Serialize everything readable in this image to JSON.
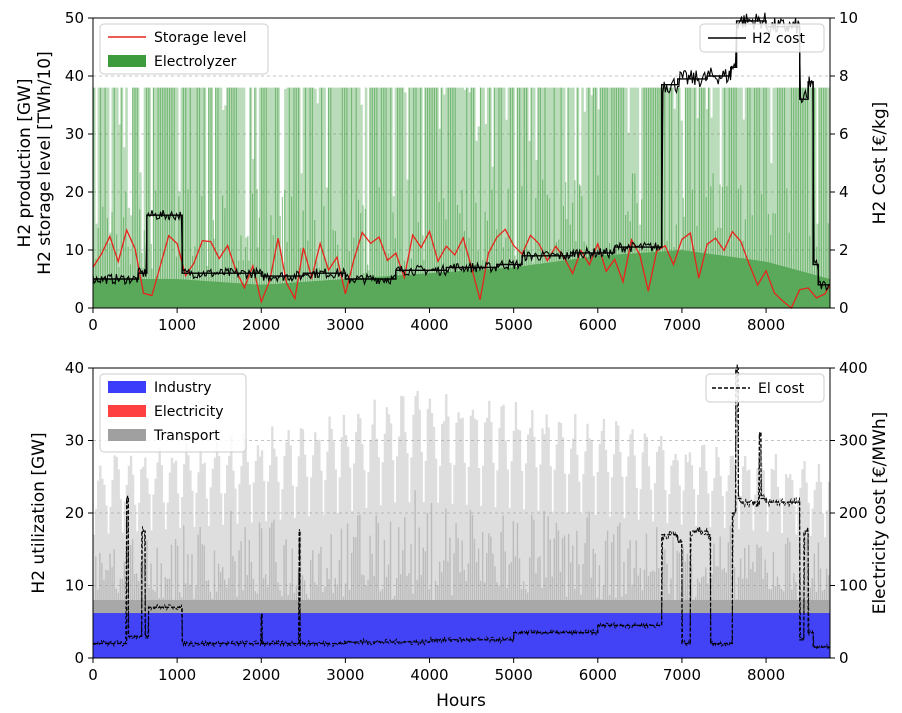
{
  "chart_data": [
    {
      "type": "area",
      "xlabel": "",
      "ylabel_lines": [
        "H2 production [GW]",
        "H2 storage level [TWh/10]"
      ],
      "ylabel_right": "H2 Cost [€/kg]",
      "xlim": [
        0,
        8760
      ],
      "ylim": [
        0,
        50
      ],
      "ylim_right": [
        0,
        10
      ],
      "xticks": [
        "0",
        "1000",
        "2000",
        "3000",
        "4000",
        "5000",
        "6000",
        "7000",
        "8000"
      ],
      "yticks": [
        "0",
        "10",
        "20",
        "30",
        "40",
        "50"
      ],
      "yticks_right": [
        "0",
        "2",
        "4",
        "6",
        "8",
        "10"
      ],
      "grid": "horizontal dashed",
      "legends": [
        {
          "placement": "top-left",
          "entries": [
            {
              "label": "Storage level",
              "kind": "line",
              "color": "#e8231b"
            },
            {
              "label": "Electrolyzer",
              "kind": "patch",
              "color": "#3d9a3d"
            }
          ]
        },
        {
          "placement": "top-right",
          "entries": [
            {
              "label": "H2 cost",
              "kind": "line",
              "color": "#000000"
            }
          ]
        }
      ],
      "series": [
        {
          "name": "Electrolyzer",
          "axis": "left",
          "color": "#3d9a3d",
          "note_level": "baseline-and-capacity",
          "x": [
            0,
            1000,
            2000,
            3000,
            4000,
            5000,
            6000,
            7000,
            8000,
            8760
          ],
          "capacity": [
            38,
            38,
            38,
            38,
            38,
            38,
            38,
            38,
            38,
            38
          ],
          "base": [
            5,
            5,
            4,
            5,
            6,
            7,
            9,
            10,
            8,
            5
          ]
        },
        {
          "name": "Storage level",
          "axis": "left",
          "color": "#e8231b",
          "x": [
            0,
            100,
            200,
            300,
            400,
            500,
            600,
            700,
            800,
            900,
            1000,
            1100,
            1200,
            1300,
            1400,
            1500,
            1600,
            1700,
            1800,
            1900,
            2000,
            2100,
            2200,
            2300,
            2400,
            2500,
            2600,
            2700,
            2800,
            2900,
            3000,
            3100,
            3200,
            3300,
            3400,
            3500,
            3600,
            3700,
            3800,
            3900,
            4000,
            4100,
            4200,
            4300,
            4400,
            4500,
            4600,
            4700,
            4800,
            4900,
            5000,
            5100,
            5200,
            5300,
            5400,
            5500,
            5600,
            5700,
            5800,
            5900,
            6000,
            6100,
            6200,
            6300,
            6400,
            6500,
            6600,
            6700,
            6800,
            6900,
            7000,
            7100,
            7200,
            7300,
            7400,
            7500,
            7600,
            7700,
            7800,
            7900,
            8000,
            8100,
            8200,
            8300,
            8400,
            8500,
            8600,
            8700,
            8760
          ],
          "values": [
            7,
            9,
            12,
            8,
            13,
            10,
            3,
            2,
            7,
            12,
            11,
            5,
            8,
            11,
            12,
            9,
            11,
            6,
            3,
            7,
            1,
            5,
            12,
            4,
            2,
            10,
            5,
            11,
            6,
            9,
            3,
            8,
            13,
            11,
            12,
            8,
            10,
            5,
            12,
            10,
            13,
            8,
            11,
            9,
            12,
            7,
            2,
            9,
            12,
            13,
            11,
            9,
            12,
            11,
            8,
            11,
            9,
            6,
            10,
            8,
            11,
            6,
            8,
            5,
            12,
            9,
            3,
            10,
            11,
            8,
            12,
            13,
            5,
            11,
            12,
            10,
            13,
            11,
            7,
            4,
            6,
            2,
            1,
            0,
            3,
            4,
            2,
            3,
            4
          ]
        },
        {
          "name": "H2 cost",
          "axis": "right",
          "color": "#000000",
          "step": true,
          "x": [
            0,
            540,
            640,
            1060,
            2000,
            2500,
            3000,
            3600,
            4200,
            4800,
            5100,
            5700,
            6200,
            6760,
            6950,
            7300,
            7580,
            7650,
            8000,
            8400,
            8500,
            8560,
            8620,
            8760
          ],
          "values": [
            1.0,
            1.2,
            3.2,
            1.2,
            1.1,
            1.2,
            1.0,
            1.3,
            1.4,
            1.5,
            1.8,
            1.9,
            2.1,
            7.7,
            7.9,
            8.0,
            8.3,
            9.9,
            9.7,
            7.2,
            7.8,
            1.5,
            0.8,
            0.8
          ]
        }
      ]
    },
    {
      "type": "area",
      "xlabel": "Hours",
      "ylabel": "H2 utilization [GW]",
      "ylabel_right": "Electricity cost [€/MWh]",
      "xlim": [
        0,
        8760
      ],
      "ylim": [
        0,
        40
      ],
      "ylim_right": [
        0,
        400
      ],
      "xticks": [
        "0",
        "1000",
        "2000",
        "3000",
        "4000",
        "5000",
        "6000",
        "7000",
        "8000"
      ],
      "yticks": [
        "0",
        "10",
        "20",
        "30",
        "40"
      ],
      "yticks_right": [
        "0",
        "100",
        "200",
        "300",
        "400"
      ],
      "grid": "horizontal dashed",
      "legends": [
        {
          "placement": "top-left",
          "entries": [
            {
              "label": "Industry",
              "kind": "patch",
              "color": "#3c3cfb"
            },
            {
              "label": "Electricity",
              "kind": "patch",
              "color": "#ff4040"
            },
            {
              "label": "Transport",
              "kind": "patch",
              "color": "#a0a0a0"
            }
          ]
        },
        {
          "placement": "top-right",
          "entries": [
            {
              "label": "El cost",
              "kind": "dashed-line",
              "color": "#000000"
            }
          ]
        }
      ],
      "series": [
        {
          "name": "Industry",
          "axis": "left",
          "color": "#3c3cfb",
          "x": [
            0,
            8760
          ],
          "values": [
            6.2,
            6.2
          ]
        },
        {
          "name": "Transport",
          "axis": "left",
          "color": "#a0a0a0",
          "x": [
            0,
            1000,
            2000,
            3000,
            3600,
            4000,
            5000,
            6000,
            7000,
            8000,
            8760
          ],
          "peaks": [
            28,
            30,
            32,
            35,
            38,
            38,
            36,
            34,
            31,
            29,
            27
          ],
          "base": [
            8,
            8,
            8,
            8,
            8,
            8,
            8,
            8,
            8,
            8,
            8
          ]
        },
        {
          "name": "El cost",
          "axis": "right",
          "color": "#000000",
          "step": true,
          "dashed": true,
          "x": [
            0,
            380,
            400,
            420,
            550,
            580,
            620,
            660,
            1000,
            1060,
            1990,
            2000,
            2010,
            2440,
            2450,
            2460,
            3000,
            4000,
            5000,
            6000,
            6760,
            6950,
            7000,
            7100,
            7300,
            7340,
            7600,
            7640,
            7670,
            7700,
            7900,
            7920,
            7940,
            8000,
            8400,
            8450,
            8500,
            8560,
            8760
          ],
          "values": [
            20,
            20,
            220,
            30,
            30,
            175,
            30,
            70,
            70,
            20,
            20,
            60,
            20,
            20,
            175,
            20,
            22,
            25,
            35,
            45,
            170,
            160,
            20,
            175,
            170,
            20,
            200,
            400,
            220,
            215,
            210,
            310,
            220,
            215,
            25,
            175,
            35,
            15,
            15
          ]
        }
      ]
    }
  ]
}
